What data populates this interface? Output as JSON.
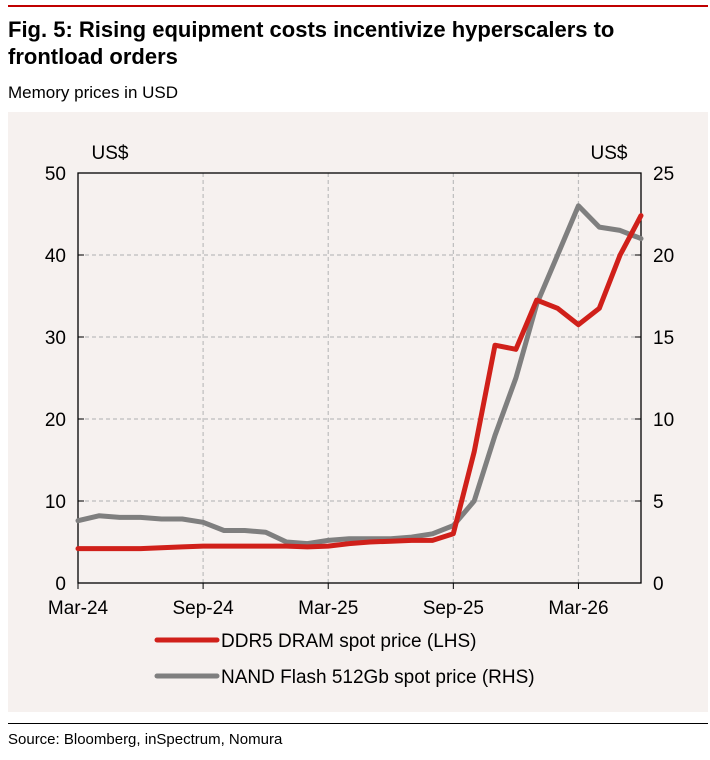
{
  "header": {
    "title": "Fig. 5: Rising equipment costs incentivize hyperscalers to frontload orders",
    "subtitle": "Memory prices in USD"
  },
  "footer": {
    "source": "Source: Bloomberg, inSpectrum, Nomura"
  },
  "colors": {
    "ddr5": "#d0201a",
    "nand": "#7f7f7f",
    "grid": "#bdbdbd",
    "frame": "#000000",
    "background": "#f6f1ef"
  },
  "chart_data": {
    "type": "line",
    "left_unit": "US$",
    "right_unit": "US$",
    "left_ylim": [
      0,
      50
    ],
    "right_ylim": [
      0,
      25
    ],
    "left_ticks": [
      0,
      10,
      20,
      30,
      40,
      50
    ],
    "right_ticks": [
      0,
      5,
      10,
      15,
      20,
      25
    ],
    "x_tick_labels": [
      "Mar-24",
      "Sep-24",
      "Mar-25",
      "Sep-25",
      "Mar-26"
    ],
    "x_range": [
      "2024-03",
      "2026-06"
    ],
    "grid": true,
    "legend_position": "bottom",
    "series": [
      {
        "name": "DDR5 DRAM spot price (LHS)",
        "axis": "left",
        "x": [
          "2024-03",
          "2024-04",
          "2024-05",
          "2024-06",
          "2024-07",
          "2024-08",
          "2024-09",
          "2024-10",
          "2024-11",
          "2024-12",
          "2025-01",
          "2025-02",
          "2025-03",
          "2025-04",
          "2025-05",
          "2025-06",
          "2025-07",
          "2025-08",
          "2025-09",
          "2025-10",
          "2025-11",
          "2025-12",
          "2026-01",
          "2026-02",
          "2026-03",
          "2026-04",
          "2026-05",
          "2026-06"
        ],
        "values": [
          4.2,
          4.2,
          4.2,
          4.2,
          4.3,
          4.4,
          4.5,
          4.5,
          4.5,
          4.5,
          4.5,
          4.4,
          4.5,
          4.8,
          5.0,
          5.1,
          5.2,
          5.2,
          6.0,
          16.0,
          29.0,
          28.5,
          34.5,
          33.5,
          31.5,
          33.5,
          40.0,
          44.8
        ]
      },
      {
        "name": "NAND Flash 512Gb spot price (RHS)",
        "axis": "right",
        "x": [
          "2024-03",
          "2024-04",
          "2024-05",
          "2024-06",
          "2024-07",
          "2024-08",
          "2024-09",
          "2024-10",
          "2024-11",
          "2024-12",
          "2025-01",
          "2025-02",
          "2025-03",
          "2025-04",
          "2025-05",
          "2025-06",
          "2025-07",
          "2025-08",
          "2025-09",
          "2025-10",
          "2025-11",
          "2025-12",
          "2026-01",
          "2026-02",
          "2026-03",
          "2026-04",
          "2026-05",
          "2026-06"
        ],
        "values": [
          3.8,
          4.1,
          4.0,
          4.0,
          3.9,
          3.9,
          3.7,
          3.2,
          3.2,
          3.1,
          2.5,
          2.4,
          2.6,
          2.7,
          2.7,
          2.7,
          2.8,
          3.0,
          3.5,
          5.0,
          9.0,
          12.5,
          17.0,
          20.0,
          23.0,
          21.7,
          21.5,
          21.0
        ]
      }
    ]
  }
}
